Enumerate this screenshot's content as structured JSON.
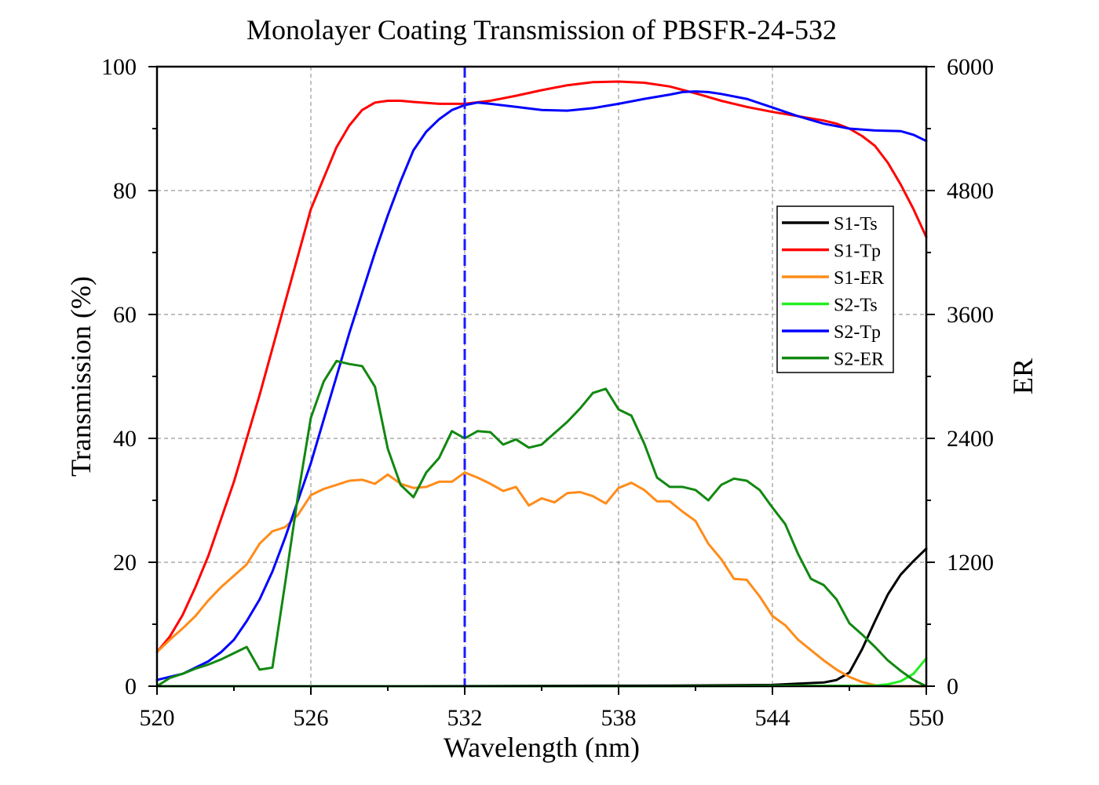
{
  "chart_data": {
    "type": "line",
    "title": "Monolayer Coating Transmission of PBSFR-24-532",
    "xlabel": "Wavelength (nm)",
    "ylabel": "Transmission (%)",
    "y2label": "ER",
    "xlim": [
      520,
      550
    ],
    "ylim": [
      0,
      100
    ],
    "y2lim": [
      0,
      6000
    ],
    "xticks": [
      "520",
      "526",
      "532",
      "538",
      "544",
      "550"
    ],
    "xtick_values": [
      520,
      526,
      532,
      538,
      544,
      550
    ],
    "yticks": [
      "0",
      "20",
      "40",
      "60",
      "80",
      "100"
    ],
    "ytick_values": [
      0,
      20,
      40,
      60,
      80,
      100
    ],
    "y2ticks": [
      "0",
      "1200",
      "2400",
      "3600",
      "4800",
      "6000"
    ],
    "y2tick_values": [
      0,
      1200,
      2400,
      3600,
      4800,
      6000
    ],
    "grid": true,
    "legend_position": "right",
    "vline": {
      "x": 532,
      "color": "#1a1aff"
    },
    "series": [
      {
        "name": "S1-Ts",
        "axis": "left",
        "color": "#000000",
        "x": [
          520,
          530,
          540,
          544,
          545,
          546,
          546.5,
          547,
          547.5,
          548,
          548.5,
          549,
          549.5,
          550
        ],
        "y": [
          0,
          0,
          0.1,
          0.2,
          0.4,
          0.6,
          1.0,
          2.2,
          6.0,
          10.5,
          14.8,
          18.0,
          20.2,
          22.2
        ]
      },
      {
        "name": "S1-Tp",
        "axis": "left",
        "color": "#ff0000",
        "x": [
          520,
          520.5,
          521,
          521.5,
          522,
          523,
          524,
          525,
          526,
          527,
          527.5,
          528,
          528.5,
          529,
          529.5,
          530,
          531,
          532,
          533,
          534,
          535,
          536,
          537,
          538,
          539,
          540,
          541,
          542,
          543,
          544,
          545,
          546,
          546.5,
          547,
          547.5,
          548,
          548.5,
          549,
          549.5,
          550
        ],
        "y": [
          5.5,
          8,
          11.5,
          16,
          21,
          33,
          47,
          62,
          77,
          87,
          90.5,
          93,
          94.2,
          94.5,
          94.5,
          94.3,
          94.0,
          94.0,
          94.5,
          95.3,
          96.2,
          97.0,
          97.5,
          97.6,
          97.4,
          96.8,
          95.7,
          94.5,
          93.5,
          92.7,
          92.0,
          91.3,
          90.8,
          90.0,
          88.8,
          87.2,
          84.5,
          81.0,
          77.0,
          72.5
        ]
      },
      {
        "name": "S1-ER",
        "axis": "right",
        "color": "#ff8c1a",
        "x": [
          520,
          520.5,
          521,
          521.5,
          522,
          522.5,
          523,
          523.5,
          524,
          524.5,
          525,
          525.5,
          526,
          526.5,
          527,
          527.5,
          528,
          528.5,
          529,
          529.5,
          530,
          530.5,
          531,
          531.5,
          532,
          532.5,
          533,
          533.5,
          534,
          534.5,
          535,
          535.5,
          536,
          536.5,
          537,
          537.5,
          538,
          538.5,
          539,
          539.5,
          540,
          540.5,
          541,
          541.5,
          542,
          542.5,
          543,
          543.5,
          544,
          544.5,
          545,
          545.5,
          546,
          546.5,
          547,
          547.5,
          548,
          548.5,
          549,
          549.5,
          550
        ],
        "y": [
          330,
          450,
          560,
          680,
          830,
          960,
          1070,
          1180,
          1380,
          1500,
          1540,
          1660,
          1850,
          1910,
          1950,
          1990,
          2000,
          1960,
          2050,
          1960,
          1920,
          1930,
          1980,
          1980,
          2070,
          2020,
          1960,
          1890,
          1930,
          1750,
          1820,
          1780,
          1870,
          1880,
          1840,
          1770,
          1920,
          1970,
          1900,
          1790,
          1790,
          1690,
          1600,
          1380,
          1230,
          1040,
          1030,
          870,
          680,
          590,
          450,
          350,
          250,
          160,
          90,
          40,
          10,
          0,
          0,
          0,
          0
        ]
      },
      {
        "name": "S2-Ts",
        "axis": "left",
        "color": "#22ee22",
        "x": [
          520,
          530,
          540,
          548,
          548.5,
          549,
          549.5,
          550
        ],
        "y": [
          0,
          0,
          0,
          0.1,
          0.3,
          0.8,
          2.0,
          4.5
        ]
      },
      {
        "name": "S2-Tp",
        "axis": "left",
        "color": "#0000ff",
        "x": [
          520,
          520.5,
          521,
          521.5,
          522,
          522.5,
          523,
          523.5,
          524,
          524.5,
          525,
          525.5,
          526,
          526.5,
          527,
          527.5,
          528,
          528.5,
          529,
          529.5,
          530,
          530.5,
          531,
          531.5,
          532,
          532.5,
          533,
          534,
          535,
          536,
          537,
          538,
          539,
          540,
          540.5,
          541,
          541.5,
          542,
          543,
          544,
          545,
          546,
          547,
          548,
          549,
          549.5,
          550
        ],
        "y": [
          1.0,
          1.5,
          2.0,
          3.0,
          4.0,
          5.5,
          7.5,
          10.5,
          14,
          18.5,
          24,
          30,
          36,
          43,
          50,
          57,
          63.5,
          70,
          76,
          81.5,
          86.5,
          89.5,
          91.5,
          93,
          93.8,
          94.2,
          94.0,
          93.5,
          93.0,
          92.9,
          93.3,
          94.0,
          94.8,
          95.5,
          95.9,
          96.0,
          95.9,
          95.6,
          94.8,
          93.4,
          92.0,
          90.8,
          90.0,
          89.7,
          89.6,
          89.0,
          88.0
        ]
      },
      {
        "name": "S2-ER",
        "axis": "right",
        "color": "#118811",
        "x": [
          520,
          520.5,
          521,
          521.5,
          522,
          522.5,
          523,
          523.5,
          524,
          524.5,
          525,
          525.5,
          526,
          526.5,
          527,
          527.5,
          528,
          528.5,
          529,
          529.5,
          530,
          530.5,
          531,
          531.5,
          532,
          532.5,
          533,
          533.5,
          534,
          534.5,
          535,
          535.5,
          536,
          536.5,
          537,
          537.5,
          538,
          538.5,
          539,
          539.5,
          540,
          540.5,
          541,
          541.5,
          542,
          542.5,
          543,
          543.5,
          544,
          544.5,
          545,
          545.5,
          546,
          546.5,
          547,
          547.5,
          548,
          548.5,
          549,
          549.5,
          550
        ],
        "y": [
          0,
          80,
          120,
          170,
          210,
          260,
          320,
          380,
          160,
          180,
          1000,
          1850,
          2600,
          2950,
          3150,
          3120,
          3100,
          2900,
          2300,
          1950,
          1830,
          2070,
          2210,
          2470,
          2400,
          2470,
          2460,
          2340,
          2390,
          2310,
          2340,
          2450,
          2560,
          2690,
          2840,
          2880,
          2680,
          2620,
          2350,
          2020,
          1930,
          1930,
          1900,
          1800,
          1950,
          2010,
          1990,
          1900,
          1730,
          1570,
          1280,
          1040,
          980,
          840,
          610,
          500,
          380,
          250,
          150,
          60,
          0
        ]
      }
    ]
  }
}
